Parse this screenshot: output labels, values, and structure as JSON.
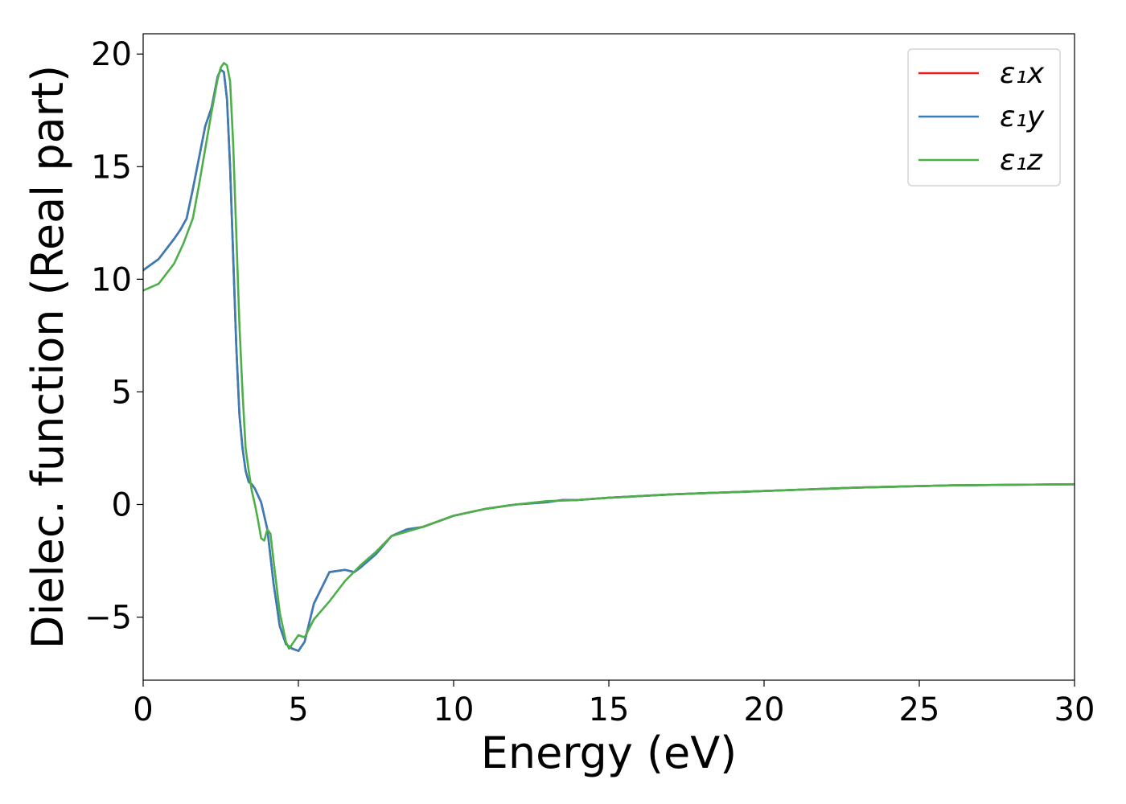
{
  "chart_data": {
    "type": "line",
    "title": "",
    "xlabel": "Energy (eV)",
    "ylabel": "Dielec. function (Real part)",
    "xlim": [
      0,
      30
    ],
    "ylim": [
      -7.8,
      20.9
    ],
    "xticks": [
      0,
      5,
      10,
      15,
      20,
      25,
      30
    ],
    "xtick_labels": [
      "0",
      "5",
      "10",
      "15",
      "20",
      "25",
      "30"
    ],
    "yticks": [
      -5,
      0,
      5,
      10,
      15,
      20
    ],
    "ytick_labels": [
      "−5",
      "0",
      "5",
      "10",
      "15",
      "20"
    ],
    "grid": false,
    "legend_position": "top-right",
    "series": [
      {
        "name": "ε₁x",
        "color": "#e41a1c",
        "x": [
          0,
          0.5,
          1.0,
          1.2,
          1.4,
          1.6,
          1.8,
          2.0,
          2.2,
          2.4,
          2.5,
          2.6,
          2.7,
          2.8,
          2.9,
          3.0,
          3.1,
          3.2,
          3.3,
          3.4,
          3.5,
          3.6,
          3.8,
          4.0,
          4.2,
          4.4,
          4.6,
          4.8,
          5.0,
          5.2,
          5.5,
          6.0,
          6.5,
          6.8,
          7.0,
          7.5,
          8.0,
          8.5,
          9.0,
          10.0,
          11.0,
          12.0,
          13.0,
          13.5,
          14.0,
          15.0,
          17.0,
          20.0,
          23.0,
          26.0,
          30.0
        ],
        "values": [
          10.4,
          10.9,
          11.8,
          12.2,
          12.7,
          14.0,
          15.4,
          16.8,
          17.6,
          19.0,
          19.3,
          19.2,
          18.0,
          15.0,
          11.0,
          7.0,
          4.0,
          2.5,
          1.5,
          1.0,
          0.9,
          0.7,
          0.1,
          -1.1,
          -3.5,
          -5.4,
          -6.2,
          -6.4,
          -6.5,
          -6.1,
          -4.4,
          -3.0,
          -2.9,
          -3.0,
          -2.8,
          -2.2,
          -1.4,
          -1.1,
          -1.0,
          -0.5,
          -0.2,
          0.0,
          0.1,
          0.2,
          0.2,
          0.3,
          0.45,
          0.6,
          0.75,
          0.85,
          0.9
        ]
      },
      {
        "name": "ε₁y",
        "color": "#377eb8",
        "x": [
          0,
          0.5,
          1.0,
          1.2,
          1.4,
          1.6,
          1.8,
          2.0,
          2.2,
          2.4,
          2.5,
          2.6,
          2.7,
          2.8,
          2.9,
          3.0,
          3.1,
          3.2,
          3.3,
          3.4,
          3.5,
          3.6,
          3.8,
          4.0,
          4.2,
          4.4,
          4.6,
          4.8,
          5.0,
          5.2,
          5.5,
          6.0,
          6.5,
          6.8,
          7.0,
          7.5,
          8.0,
          8.5,
          9.0,
          10.0,
          11.0,
          12.0,
          13.0,
          13.5,
          14.0,
          15.0,
          17.0,
          20.0,
          23.0,
          26.0,
          30.0
        ],
        "values": [
          10.4,
          10.9,
          11.8,
          12.2,
          12.7,
          14.0,
          15.4,
          16.8,
          17.6,
          19.0,
          19.3,
          19.2,
          18.0,
          15.0,
          11.0,
          7.0,
          4.0,
          2.5,
          1.5,
          1.0,
          0.9,
          0.7,
          0.1,
          -1.1,
          -3.5,
          -5.4,
          -6.2,
          -6.4,
          -6.5,
          -6.1,
          -4.4,
          -3.0,
          -2.9,
          -3.0,
          -2.8,
          -2.2,
          -1.4,
          -1.1,
          -1.0,
          -0.5,
          -0.2,
          0.0,
          0.1,
          0.2,
          0.2,
          0.3,
          0.45,
          0.6,
          0.75,
          0.85,
          0.9
        ]
      },
      {
        "name": "ε₁z",
        "color": "#4daf4a",
        "x": [
          0,
          0.5,
          1.0,
          1.3,
          1.6,
          1.8,
          2.0,
          2.2,
          2.4,
          2.5,
          2.6,
          2.7,
          2.8,
          2.9,
          3.0,
          3.1,
          3.2,
          3.3,
          3.4,
          3.5,
          3.6,
          3.7,
          3.8,
          3.9,
          4.0,
          4.1,
          4.2,
          4.4,
          4.6,
          4.7,
          4.8,
          5.0,
          5.2,
          5.5,
          6.0,
          6.5,
          7.0,
          7.5,
          8.0,
          8.5,
          9.0,
          10.0,
          11.0,
          12.0,
          13.0,
          14.0,
          15.0,
          17.0,
          20.0,
          23.0,
          26.0,
          30.0
        ],
        "values": [
          9.5,
          9.8,
          10.7,
          11.6,
          12.7,
          14.2,
          15.8,
          17.4,
          18.9,
          19.4,
          19.6,
          19.5,
          18.8,
          16.0,
          12.0,
          8.0,
          5.0,
          2.5,
          1.5,
          0.6,
          0.0,
          -0.7,
          -1.5,
          -1.6,
          -1.1,
          -1.3,
          -2.5,
          -4.8,
          -6.1,
          -6.4,
          -6.2,
          -5.8,
          -5.9,
          -5.1,
          -4.3,
          -3.4,
          -2.7,
          -2.1,
          -1.4,
          -1.2,
          -1.0,
          -0.5,
          -0.2,
          0.0,
          0.15,
          0.2,
          0.3,
          0.45,
          0.6,
          0.75,
          0.85,
          0.9
        ]
      }
    ]
  }
}
